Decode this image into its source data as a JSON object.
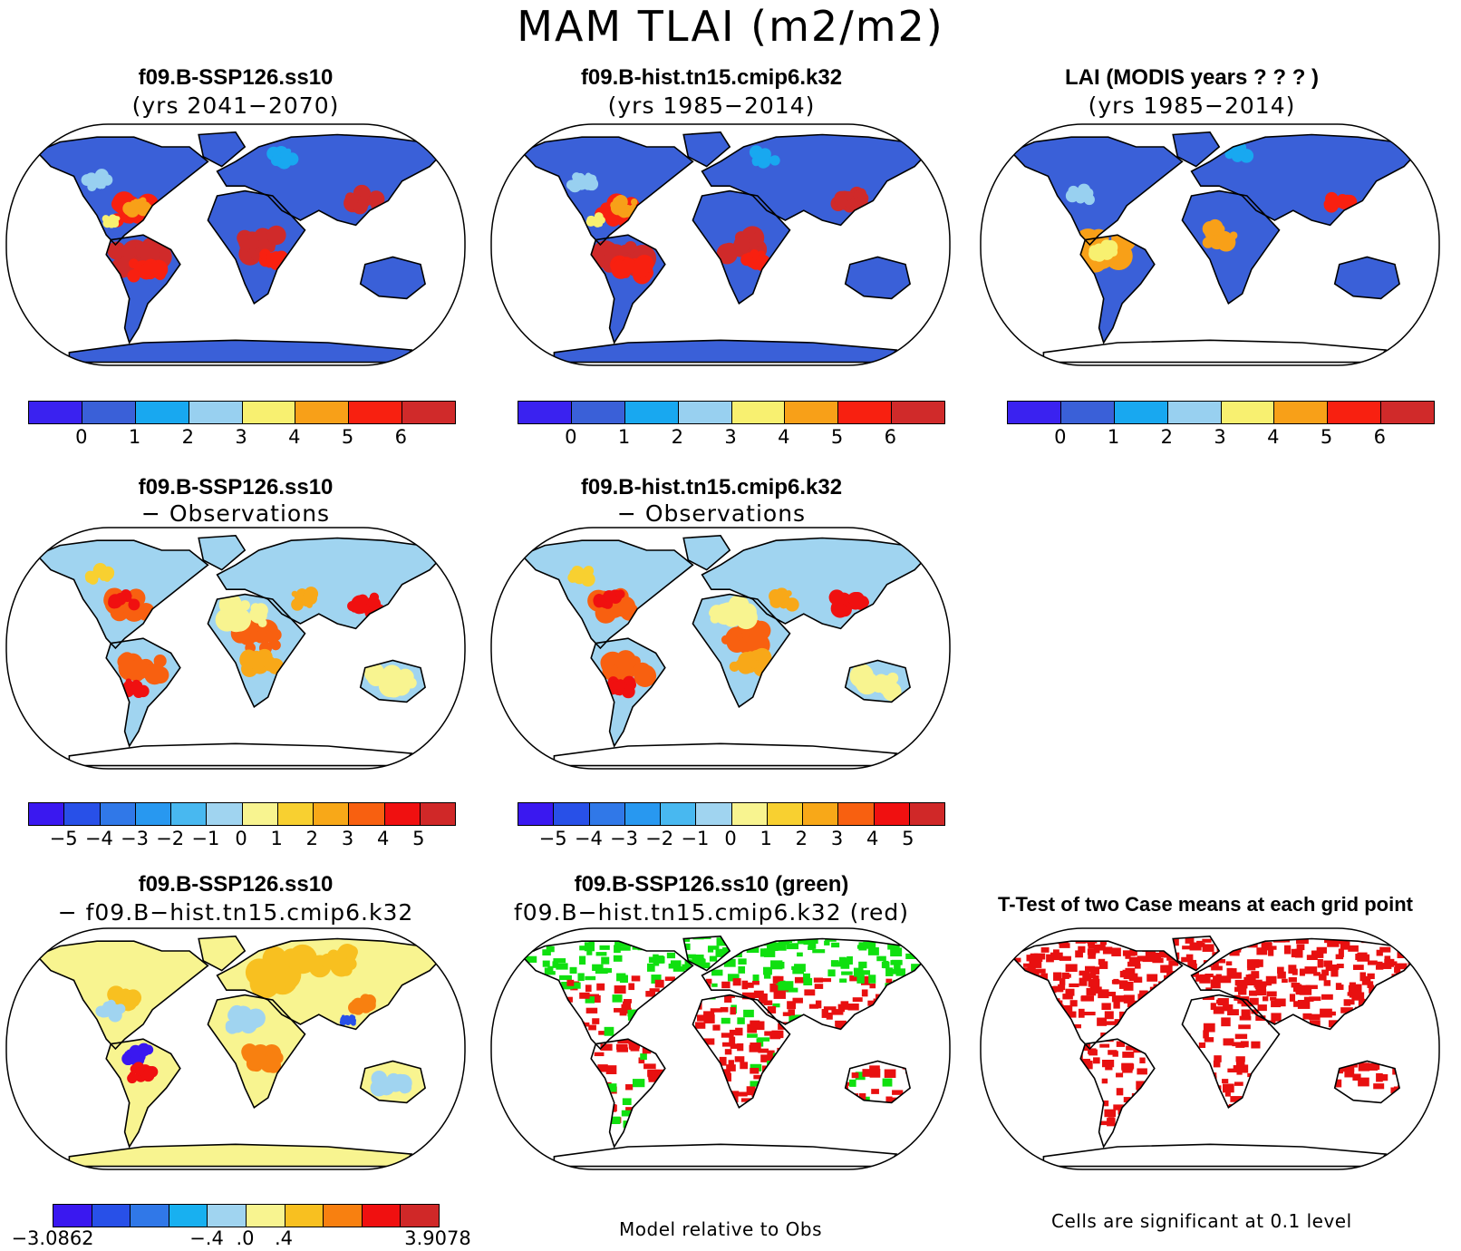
{
  "title": "MAM TLAI (m2/m2)",
  "panels": [
    {
      "id": "p1",
      "title": "f09.B-SSP126.ss10",
      "subtitle": "(yrs 2041−2070)",
      "kind": "abs"
    },
    {
      "id": "p2",
      "title": "f09.B-hist.tn15.cmip6.k32",
      "subtitle": "(yrs 1985−2014)",
      "kind": "abs"
    },
    {
      "id": "p3",
      "title": "LAI (MODIS years ? ? ? )",
      "subtitle": "(yrs 1985−2014)",
      "kind": "obs"
    },
    {
      "id": "p4",
      "title": "f09.B-SSP126.ss10",
      "subtitle": "− Observations",
      "kind": "bias"
    },
    {
      "id": "p5",
      "title": "f09.B-hist.tn15.cmip6.k32",
      "subtitle": "− Observations",
      "kind": "bias"
    },
    {
      "id": "p7",
      "title": "f09.B-SSP126.ss10",
      "subtitle": "− f09.B−hist.tn15.cmip6.k32",
      "kind": "diff"
    },
    {
      "id": "p8",
      "title": "f09.B-SSP126.ss10 (green)",
      "subtitle": "f09.B−hist.tn15.cmip6.k32 (red)",
      "kind": "compare"
    },
    {
      "id": "p9",
      "title": "T-Test of two Case means at each grid point",
      "subtitle": "",
      "kind": "ttest"
    }
  ],
  "colorbars": {
    "abs": {
      "colors": [
        "#3a22f0",
        "#3a60d8",
        "#18a8f0",
        "#98d0f0",
        "#f8f070",
        "#f8a018",
        "#f82010",
        "#d02a2a"
      ],
      "labels": [
        "0",
        "1",
        "2",
        "3",
        "4",
        "5",
        "6"
      ]
    },
    "bias": {
      "colors": [
        "#3a18f0",
        "#2850e8",
        "#3078e8",
        "#2898f0",
        "#48b8f0",
        "#a0d4f0",
        "#f8f490",
        "#f8d030",
        "#f8a818",
        "#f86010",
        "#f01010",
        "#d02828"
      ],
      "labels": [
        "−5",
        "−4",
        "−3",
        "−2",
        "−1",
        "0",
        "1",
        "2",
        "3",
        "4",
        "5"
      ]
    },
    "diff": {
      "colors": [
        "#3a18f0",
        "#2850e8",
        "#3078e8",
        "#18b0f0",
        "#a0d4f0",
        "#f8f490",
        "#f8c020",
        "#f88010",
        "#f01010",
        "#d02828"
      ],
      "labels": [
        "−3.0862",
        "−.4",
        ".0",
        ".4",
        "3.9078"
      ]
    }
  },
  "notes": {
    "compare": "Model relative to Obs",
    "ttest": "Cells are significant at 0.1 level"
  },
  "map_colors": {
    "land_abs_base": "#3a60d8",
    "land_obs_base": "#3a60d8",
    "bias_base": "#a0d4f0",
    "diff_base": "#f8f490",
    "green": "#10e010",
    "red": "#e81010"
  }
}
